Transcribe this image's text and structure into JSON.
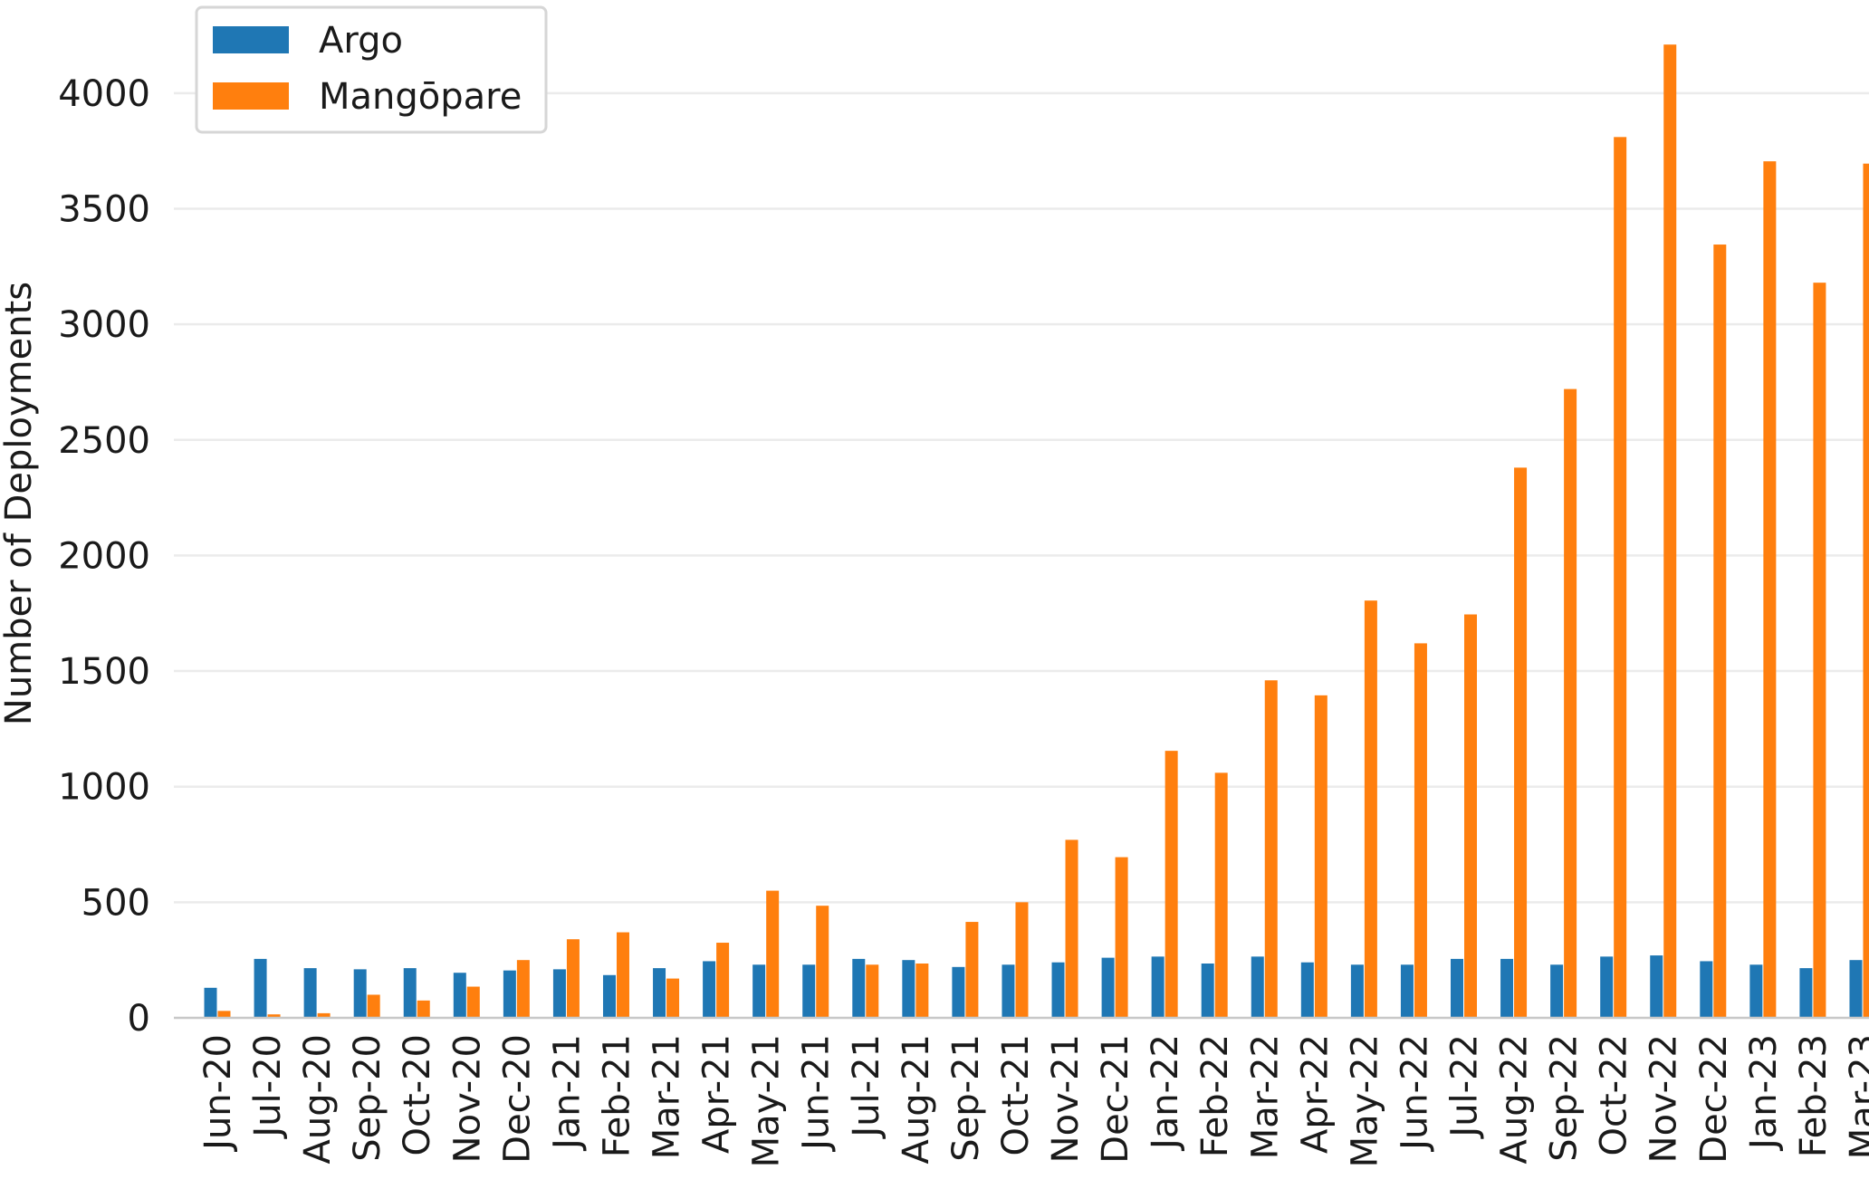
{
  "chart_data": {
    "type": "bar",
    "ylabel": "Number of Deployments",
    "ylim": [
      0,
      4250
    ],
    "yticks": [
      0,
      500,
      1000,
      1500,
      2000,
      2500,
      3000,
      3500,
      4000
    ],
    "grid": "y",
    "legend_position": "top-left",
    "categories": [
      "Jun-20",
      "Jul-20",
      "Aug-20",
      "Sep-20",
      "Oct-20",
      "Nov-20",
      "Dec-20",
      "Jan-21",
      "Feb-21",
      "Mar-21",
      "Apr-21",
      "May-21",
      "Jun-21",
      "Jul-21",
      "Aug-21",
      "Sep-21",
      "Oct-21",
      "Nov-21",
      "Dec-21",
      "Jan-22",
      "Feb-22",
      "Mar-22",
      "Apr-22",
      "May-22",
      "Jun-22",
      "Jul-22",
      "Aug-22",
      "Sep-22",
      "Oct-22",
      "Nov-22",
      "Dec-22",
      "Jan-23",
      "Feb-23",
      "Mar-23"
    ],
    "series": [
      {
        "name": "Argo",
        "color": "#1f77b4",
        "values": [
          130,
          255,
          215,
          210,
          215,
          195,
          205,
          210,
          185,
          215,
          245,
          230,
          230,
          255,
          250,
          220,
          230,
          240,
          260,
          265,
          235,
          265,
          240,
          230,
          230,
          255,
          255,
          230,
          265,
          270,
          245,
          230,
          215,
          250
        ]
      },
      {
        "name": "Mangōpare",
        "color": "#ff7f0e",
        "values": [
          30,
          15,
          20,
          100,
          75,
          135,
          250,
          340,
          370,
          170,
          325,
          550,
          485,
          230,
          235,
          415,
          500,
          770,
          695,
          1155,
          1060,
          1460,
          1395,
          1805,
          1620,
          1745,
          2380,
          2720,
          3810,
          4210,
          3345,
          3705,
          3180,
          3695
        ]
      }
    ]
  }
}
